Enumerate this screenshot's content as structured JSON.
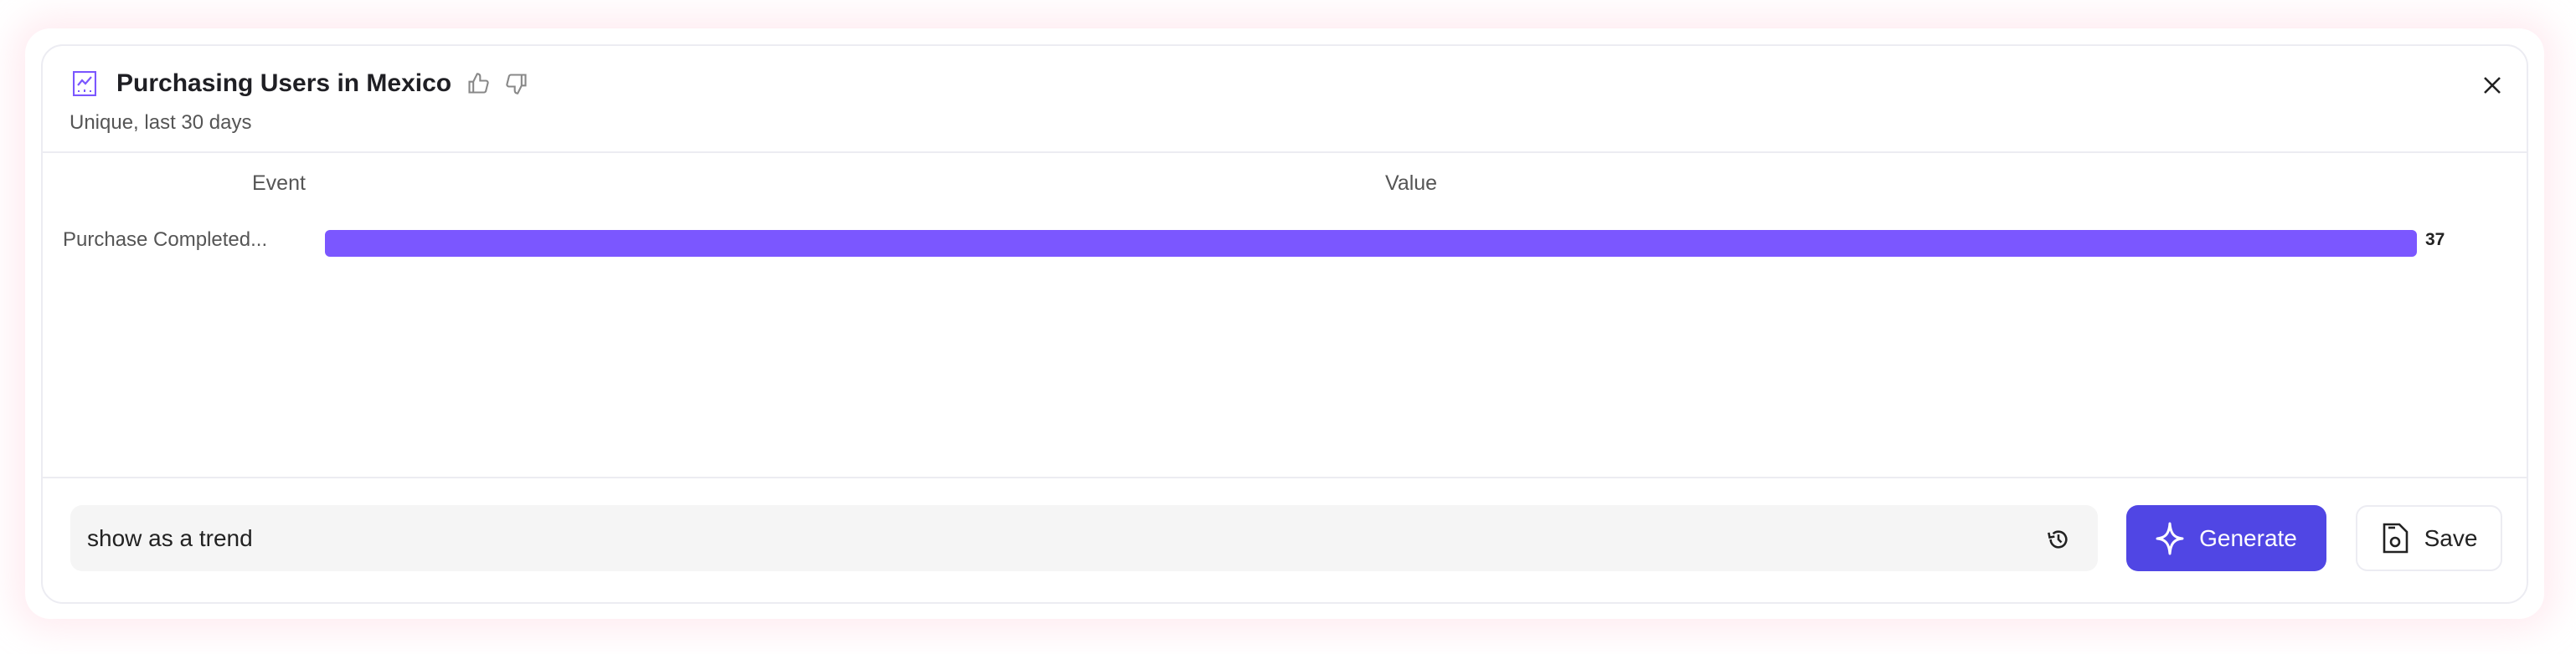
{
  "header": {
    "title": "Purchasing Users in Mexico",
    "subtitle": "Unique, last 30 days",
    "icon": "line-chart-icon"
  },
  "table": {
    "columns": [
      "Event",
      "Value"
    ]
  },
  "chart_data": {
    "type": "bar",
    "orientation": "horizontal",
    "categories": [
      "Purchase Completed..."
    ],
    "values": [
      37
    ],
    "xlim": [
      0,
      37
    ],
    "data_labels": [
      "37"
    ],
    "color": "#7b57ff"
  },
  "footer": {
    "input_value": "show as a trend",
    "generate_label": "Generate",
    "save_label": "Save"
  },
  "colors": {
    "accent": "#5046e4",
    "bar": "#7b57ff"
  }
}
